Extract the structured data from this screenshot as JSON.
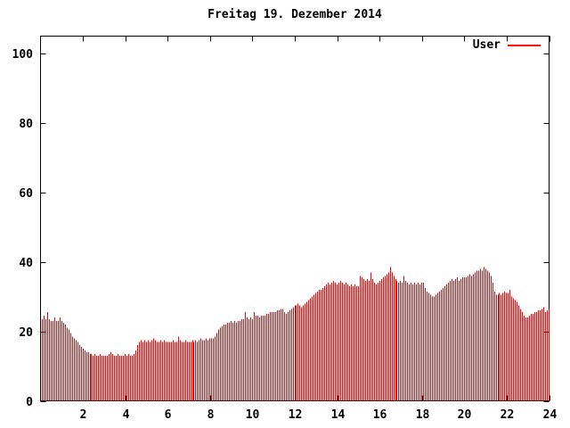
{
  "chart_data": {
    "type": "bar",
    "title": "Freitag 19. Dezember 2014",
    "xlabel": "",
    "ylabel": "",
    "x_unit": "hour of day",
    "minutes_per_bar": 5,
    "xlim": [
      0,
      24
    ],
    "ylim": [
      0,
      105
    ],
    "x_ticks": [
      2,
      4,
      6,
      8,
      10,
      12,
      14,
      16,
      18,
      20,
      22,
      24
    ],
    "y_ticks": [
      0,
      20,
      40,
      60,
      80,
      100
    ],
    "grid": false,
    "legend_position": "top-right-inside",
    "colors": {
      "bars": "#ff0000",
      "axis": "#000000",
      "background": "#ffffff"
    },
    "series": [
      {
        "name": "User",
        "color": "#ff0000",
        "values": [
          23.5,
          24.5,
          23.5,
          25.5,
          23.5,
          23,
          23,
          24,
          23,
          23,
          24,
          23,
          22.5,
          22,
          21,
          20.5,
          19.5,
          18.5,
          18,
          17.5,
          17,
          16,
          15.5,
          15,
          14.5,
          14,
          14,
          13.5,
          13.5,
          13,
          13.5,
          13,
          13,
          13.5,
          13,
          13,
          13,
          13,
          13.5,
          14,
          13.5,
          13,
          13,
          13.5,
          13,
          13,
          13,
          13.5,
          13,
          13.5,
          13,
          13,
          13.5,
          14.5,
          16,
          17,
          17.5,
          17,
          17.5,
          17,
          17.5,
          17,
          17.5,
          18,
          17.5,
          17,
          17,
          17.5,
          17,
          17.5,
          17,
          17,
          17,
          17,
          17.5,
          17,
          17,
          18.5,
          17.5,
          17,
          17,
          17.5,
          17,
          17,
          17,
          17.5,
          17,
          17.5,
          17,
          17.5,
          18,
          17.5,
          17.5,
          18,
          17.5,
          18,
          18,
          18,
          18.5,
          19.5,
          20.5,
          21,
          21.5,
          22,
          22,
          22.5,
          22.5,
          23,
          22.5,
          23,
          22.5,
          23,
          23,
          23.5,
          23.5,
          25.5,
          24,
          23.5,
          24,
          23.5,
          25.5,
          24.5,
          24.5,
          24,
          24.5,
          24.5,
          24.5,
          25,
          25,
          25.5,
          25.5,
          25.5,
          25.5,
          26,
          26,
          26.5,
          26.5,
          25.5,
          25,
          25.5,
          26,
          26.5,
          27,
          27.5,
          27.5,
          28,
          27.5,
          27,
          27.5,
          28,
          28.5,
          29,
          29.5,
          30,
          30.5,
          31,
          31.5,
          32,
          32,
          32.5,
          33,
          33.5,
          34,
          33.5,
          34,
          34.5,
          34,
          33.5,
          34,
          34.5,
          34,
          33.5,
          34,
          33.5,
          33,
          33.5,
          33,
          33.5,
          33,
          33,
          36,
          35.5,
          35,
          34.5,
          35,
          34.5,
          37,
          35,
          34,
          33.5,
          34,
          34.5,
          35,
          35.5,
          36,
          36.5,
          37,
          38.5,
          37,
          36,
          35,
          34.5,
          34,
          34.5,
          34,
          36,
          34.5,
          34,
          33.5,
          34,
          33.5,
          34,
          33.5,
          34,
          33.5,
          34,
          34,
          32.5,
          31.5,
          31,
          30.5,
          30,
          30,
          30.5,
          31,
          31.5,
          32,
          32.5,
          33,
          33.5,
          34,
          34.5,
          35,
          34.5,
          35,
          35.5,
          34.5,
          35,
          35.5,
          35.5,
          35.5,
          36,
          36.5,
          36,
          36.5,
          37,
          37.5,
          37.5,
          38,
          37.5,
          38.5,
          38,
          37.5,
          37,
          36,
          34,
          31.5,
          30.5,
          30.5,
          31,
          30.5,
          31,
          31.5,
          31,
          31,
          32,
          30,
          29.5,
          29,
          28.5,
          27.5,
          26.5,
          25.5,
          24.5,
          24,
          24,
          24.5,
          25,
          25,
          25.5,
          25.5,
          26,
          26,
          26.5,
          27,
          25.5,
          26,
          26.5
        ]
      }
    ]
  }
}
